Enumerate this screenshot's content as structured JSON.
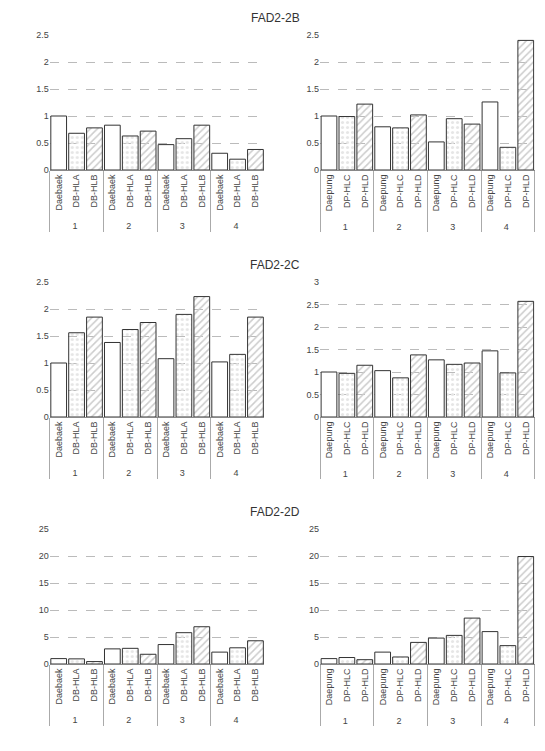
{
  "chart_data": [
    {
      "title": "FAD2-2B",
      "charts": [
        {
          "type": "bar",
          "grid": true,
          "categories": [
            "1",
            "2",
            "3",
            "4"
          ],
          "ylim": [
            0,
            2.5
          ],
          "yticks": [
            0,
            0.5,
            1,
            1.5,
            2,
            2.5
          ],
          "series": [
            {
              "name": "Daebaek",
              "color": "#ffffff",
              "marker": "solid",
              "values": [
                1.0,
                0.83,
                0.47,
                0.31
              ]
            },
            {
              "name": "DB-HLA",
              "color": "#e6e6e6",
              "marker": "dots",
              "values": [
                0.68,
                0.63,
                0.58,
                0.2
              ]
            },
            {
              "name": "DB-HLB",
              "color": "#cccccc",
              "marker": "hatch",
              "values": [
                0.78,
                0.72,
                0.83,
                0.38
              ]
            }
          ]
        },
        {
          "type": "bar",
          "grid": true,
          "categories": [
            "1",
            "2",
            "3",
            "4"
          ],
          "ylim": [
            0,
            2.5
          ],
          "yticks": [
            0,
            0.5,
            1,
            1.5,
            2,
            2.5
          ],
          "series": [
            {
              "name": "Daepung",
              "color": "#ffffff",
              "marker": "solid",
              "values": [
                1.0,
                0.8,
                0.52,
                1.26
              ]
            },
            {
              "name": "DP-HLC",
              "color": "#e6e6e6",
              "marker": "dots",
              "values": [
                0.99,
                0.78,
                0.95,
                0.42
              ]
            },
            {
              "name": "DP-HLD",
              "color": "#cccccc",
              "marker": "hatch",
              "values": [
                1.22,
                1.02,
                0.85,
                2.4
              ]
            }
          ]
        }
      ]
    },
    {
      "title": "FAD2-2C",
      "charts": [
        {
          "type": "bar",
          "grid": true,
          "categories": [
            "1",
            "2",
            "3",
            "4"
          ],
          "ylim": [
            0,
            2.5
          ],
          "yticks": [
            0,
            0.5,
            1,
            1.5,
            2,
            2.5
          ],
          "series": [
            {
              "name": "Daebaek",
              "color": "#ffffff",
              "marker": "solid",
              "values": [
                1.0,
                1.38,
                1.08,
                1.02
              ]
            },
            {
              "name": "DB-HLA",
              "color": "#e6e6e6",
              "marker": "dots",
              "values": [
                1.56,
                1.62,
                1.9,
                1.16
              ]
            },
            {
              "name": "DB-HLB",
              "color": "#cccccc",
              "marker": "hatch",
              "values": [
                1.85,
                1.75,
                2.23,
                1.85
              ]
            }
          ]
        },
        {
          "type": "bar",
          "grid": true,
          "categories": [
            "1",
            "2",
            "3",
            "4"
          ],
          "ylim": [
            0,
            3
          ],
          "yticks": [
            0,
            0.5,
            1,
            1.5,
            2,
            2.5,
            3
          ],
          "series": [
            {
              "name": "Daepung",
              "color": "#ffffff",
              "marker": "solid",
              "values": [
                1.0,
                1.03,
                1.27,
                1.47
              ]
            },
            {
              "name": "DP-HLC",
              "color": "#e6e6e6",
              "marker": "dots",
              "values": [
                0.97,
                0.87,
                1.17,
                0.98
              ]
            },
            {
              "name": "DP-HLD",
              "color": "#cccccc",
              "marker": "hatch",
              "values": [
                1.15,
                1.38,
                1.2,
                2.57
              ]
            }
          ]
        }
      ]
    },
    {
      "title": "FAD2-2D",
      "charts": [
        {
          "type": "bar",
          "grid": true,
          "categories": [
            "1",
            "2",
            "3",
            "4"
          ],
          "ylim": [
            0,
            25
          ],
          "yticks": [
            0,
            5,
            10,
            15,
            20,
            25
          ],
          "series": [
            {
              "name": "Daebaek",
              "color": "#ffffff",
              "marker": "solid",
              "values": [
                1.0,
                2.8,
                3.6,
                2.2
              ]
            },
            {
              "name": "DB-HLA",
              "color": "#e6e6e6",
              "marker": "dots",
              "values": [
                0.95,
                2.9,
                5.8,
                3.0
              ]
            },
            {
              "name": "DB-HLB",
              "color": "#cccccc",
              "marker": "hatch",
              "values": [
                0.45,
                1.8,
                6.9,
                4.3
              ]
            }
          ]
        },
        {
          "type": "bar",
          "grid": true,
          "categories": [
            "1",
            "2",
            "3",
            "4"
          ],
          "ylim": [
            0,
            25
          ],
          "yticks": [
            0,
            5,
            10,
            15,
            20,
            25
          ],
          "series": [
            {
              "name": "Daepung",
              "color": "#ffffff",
              "marker": "solid",
              "values": [
                1.0,
                2.2,
                4.8,
                6.0
              ]
            },
            {
              "name": "DP-HLC",
              "color": "#e6e6e6",
              "marker": "dots",
              "values": [
                1.2,
                1.3,
                5.3,
                3.4
              ]
            },
            {
              "name": "DP-HLD",
              "color": "#cccccc",
              "marker": "hatch",
              "values": [
                0.8,
                4.0,
                8.5,
                19.9
              ]
            }
          ]
        }
      ]
    }
  ]
}
